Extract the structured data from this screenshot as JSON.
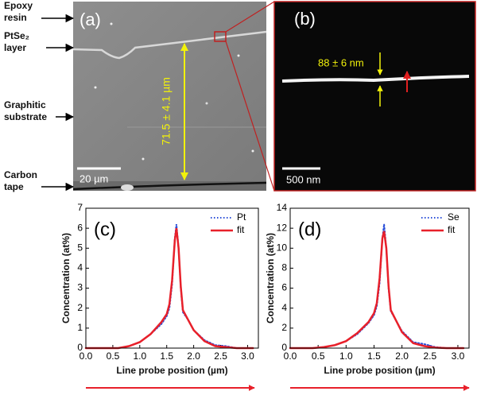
{
  "figure": {
    "side_labels": [
      {
        "lines": [
          "Epoxy",
          "resin"
        ]
      },
      {
        "lines": [
          "PtSe₂",
          "layer"
        ]
      },
      {
        "lines": [
          "Graphitic",
          "substrate"
        ]
      },
      {
        "lines": [
          "Carbon",
          "tape"
        ]
      }
    ],
    "panel_a": {
      "label": "(a)",
      "thickness": "71.5 ± 4.1 µm",
      "scale_bar": "20 µm"
    },
    "panel_b": {
      "label": "(b)",
      "thickness": "88 ± 6 nm",
      "scale_bar": "500 nm"
    }
  },
  "chart_data": [
    {
      "type": "line",
      "panel_label": "(c)",
      "x_label": "Line probe position (µm)",
      "y_label": "Concentration (at%)",
      "x": [
        0,
        0.2,
        0.4,
        0.6,
        0.8,
        1.0,
        1.2,
        1.4,
        1.5,
        1.55,
        1.6,
        1.65,
        1.68,
        1.72,
        1.76,
        1.8,
        1.9,
        2.0,
        2.2,
        2.4,
        2.6,
        2.8,
        3.0,
        3.1
      ],
      "series": [
        {
          "name": "Pt",
          "color": "#2b4fd8",
          "line_style": "dotted",
          "values": [
            0,
            0,
            0,
            0,
            0.1,
            0.3,
            0.7,
            1.2,
            1.6,
            2.0,
            3.2,
            5.5,
            6.2,
            5.0,
            3.0,
            1.8,
            1.4,
            0.9,
            0.4,
            0.15,
            0.1,
            0,
            0,
            0
          ]
        },
        {
          "name": "fit",
          "color": "#e8202a",
          "line_style": "solid",
          "values": [
            0,
            0,
            0,
            0,
            0.1,
            0.3,
            0.7,
            1.3,
            1.7,
            2.2,
            3.4,
            5.4,
            6.0,
            5.0,
            3.1,
            1.9,
            1.4,
            0.9,
            0.35,
            0.1,
            0.05,
            0,
            0,
            0
          ]
        }
      ],
      "xlim": [
        0,
        3.2
      ],
      "ylim": [
        0,
        7
      ],
      "xticks": [
        {
          "value": 0,
          "label": "0.0"
        },
        {
          "value": 0.5,
          "label": "0.5"
        },
        {
          "value": 1,
          "label": "1.0"
        },
        {
          "value": 1.5,
          "label": "1.5"
        },
        {
          "value": 2,
          "label": "2.0"
        },
        {
          "value": 2.5,
          "label": "2.5"
        },
        {
          "value": 3,
          "label": "3.0"
        }
      ],
      "yticks": [
        0,
        1,
        2,
        3,
        4,
        5,
        6,
        7
      ],
      "legend": "upper right"
    },
    {
      "type": "line",
      "panel_label": "(d)",
      "x_label": "Line probe position (µm)",
      "y_label": "Concentration (at%)",
      "x": [
        0,
        0.2,
        0.4,
        0.6,
        0.8,
        1.0,
        1.2,
        1.4,
        1.5,
        1.55,
        1.6,
        1.65,
        1.68,
        1.72,
        1.76,
        1.8,
        1.9,
        2.0,
        2.2,
        2.4,
        2.6,
        2.8,
        3.0,
        3.1
      ],
      "series": [
        {
          "name": "Se",
          "color": "#2b4fd8",
          "line_style": "dotted",
          "values": [
            0,
            0,
            0,
            0.1,
            0.3,
            0.7,
            1.4,
            2.5,
            3.3,
            4.2,
            6.5,
            11,
            12.4,
            10,
            6,
            3.7,
            2.7,
            1.7,
            0.6,
            0.4,
            0.1,
            0,
            0,
            0
          ]
        },
        {
          "name": "fit",
          "color": "#e8202a",
          "line_style": "solid",
          "values": [
            0,
            0,
            0,
            0.1,
            0.3,
            0.7,
            1.5,
            2.6,
            3.5,
            4.5,
            7,
            11,
            11.7,
            10,
            6.2,
            3.8,
            2.7,
            1.6,
            0.5,
            0.2,
            0.05,
            0,
            0,
            0
          ]
        }
      ],
      "xlim": [
        0,
        3.2
      ],
      "ylim": [
        0,
        14
      ],
      "xticks": [
        {
          "value": 0,
          "label": "0.0"
        },
        {
          "value": 0.5,
          "label": "0.5"
        },
        {
          "value": 1,
          "label": "1.0"
        },
        {
          "value": 1.5,
          "label": "1.5"
        },
        {
          "value": 2,
          "label": "2.0"
        },
        {
          "value": 2.5,
          "label": "2.5"
        },
        {
          "value": 3,
          "label": "3.0"
        }
      ],
      "yticks": [
        0,
        2,
        4,
        6,
        8,
        10,
        12,
        14
      ],
      "legend": "upper right"
    }
  ]
}
